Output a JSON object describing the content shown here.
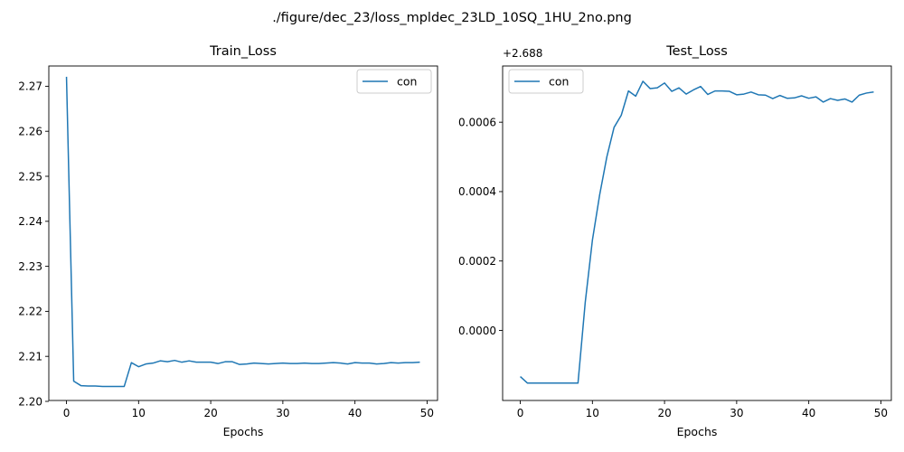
{
  "figure": {
    "suptitle": "./figure/dec_23/loss_mpldec_23LD_10SQ_1HU_2no.png"
  },
  "chart_data": [
    {
      "type": "line",
      "title": "Train_Loss",
      "xlabel": "Epochs",
      "ylabel": "",
      "xlim": [
        -2.45,
        51.45
      ],
      "ylim": [
        2.2002,
        2.2745
      ],
      "xticks": [
        0,
        10,
        20,
        30,
        40,
        50
      ],
      "yticks": [
        2.2,
        2.21,
        2.22,
        2.23,
        2.24,
        2.25,
        2.26,
        2.27
      ],
      "xtick_labels": [
        "0",
        "10",
        "20",
        "30",
        "40",
        "50"
      ],
      "ytick_labels": [
        "2.20",
        "2.21",
        "2.22",
        "2.23",
        "2.24",
        "2.25",
        "2.26",
        "2.27"
      ],
      "offset_text": "",
      "legend": "top-right",
      "series": [
        {
          "name": "con",
          "color": "#1f77b4",
          "values": [
            2.2721,
            2.2045,
            2.2035,
            2.2034,
            2.2034,
            2.2033,
            2.2033,
            2.2033,
            2.2033,
            2.2086,
            2.2077,
            2.2083,
            2.2085,
            2.209,
            2.2088,
            2.2091,
            2.2087,
            2.209,
            2.2087,
            2.2087,
            2.2087,
            2.2084,
            2.2088,
            2.2088,
            2.2082,
            2.2083,
            2.2085,
            2.2084,
            2.2083,
            2.2084,
            2.2085,
            2.2084,
            2.2084,
            2.2085,
            2.2084,
            2.2084,
            2.2085,
            2.2086,
            2.2085,
            2.2083,
            2.2086,
            2.2085,
            2.2085,
            2.2083,
            2.2084,
            2.2086,
            2.2085,
            2.2086,
            2.2086,
            2.2087
          ]
        }
      ]
    },
    {
      "type": "line",
      "title": "Test_Loss",
      "xlabel": "Epochs",
      "ylabel": "",
      "xlim": [
        -2.45,
        51.45
      ],
      "ylim": [
        -0.000202,
        0.000762
      ],
      "xticks": [
        0,
        10,
        20,
        30,
        40,
        50
      ],
      "yticks": [
        0.0,
        0.0002,
        0.0004,
        0.0006
      ],
      "xtick_labels": [
        "0",
        "10",
        "20",
        "30",
        "40",
        "50"
      ],
      "ytick_labels": [
        "0.0000",
        "0.0002",
        "0.0004",
        "0.0006"
      ],
      "offset_text": "+2.688",
      "legend": "top-left",
      "series": [
        {
          "name": "con",
          "color": "#1f77b4",
          "values": [
            -0.000133,
            -0.000152,
            -0.000152,
            -0.000152,
            -0.000152,
            -0.000152,
            -0.000152,
            -0.000152,
            -0.000152,
            8e-05,
            0.00026,
            0.00039,
            0.0005,
            0.000585,
            0.00062,
            0.00069,
            0.000675,
            0.000718,
            0.000697,
            0.000699,
            0.000713,
            0.000689,
            0.000699,
            0.000681,
            0.000693,
            0.000703,
            0.00068,
            0.00069,
            0.00069,
            0.000689,
            0.000679,
            0.000681,
            0.000687,
            0.000679,
            0.000678,
            0.000668,
            0.000677,
            0.000669,
            0.00067,
            0.000676,
            0.000669,
            0.000673,
            0.000658,
            0.000668,
            0.000663,
            0.000667,
            0.000658,
            0.000678,
            0.000684,
            0.000687
          ]
        }
      ]
    }
  ]
}
